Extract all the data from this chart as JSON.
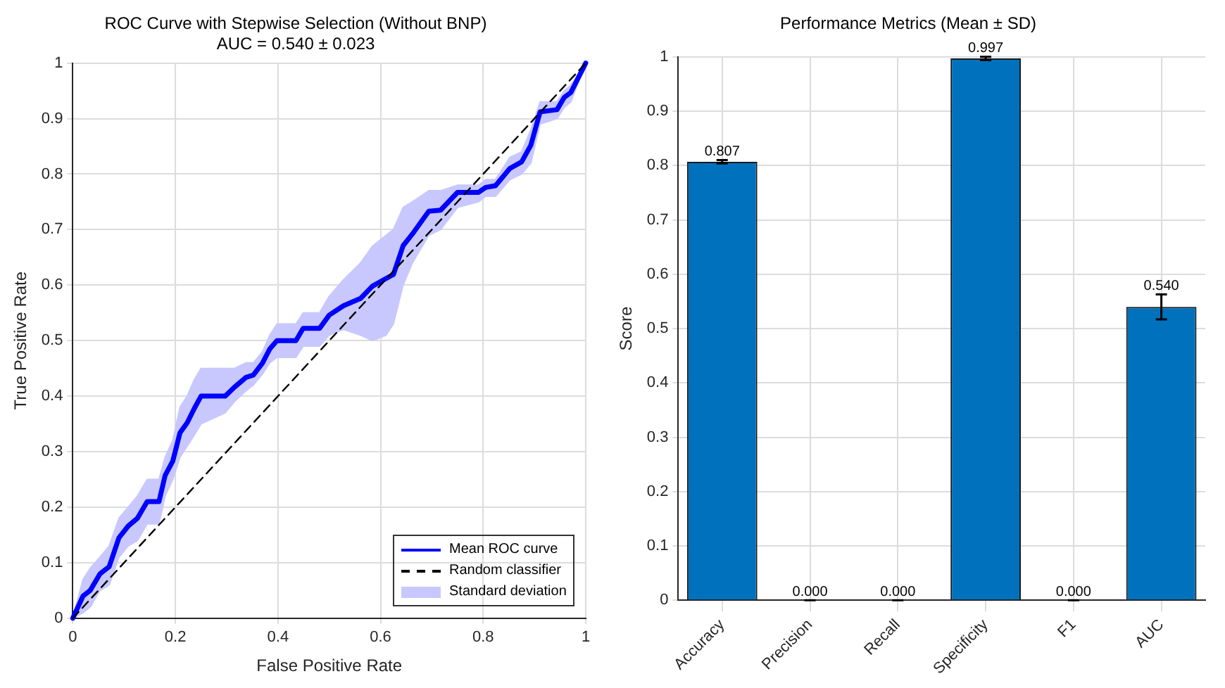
{
  "chart_data": [
    {
      "type": "line",
      "title": "ROC Curve with Stepwise Selection (Without BNP)",
      "subtitle": "AUC = 0.540 ± 0.023",
      "xlabel": "False Positive Rate",
      "ylabel": "True Positive Rate",
      "xlim": [
        0,
        1
      ],
      "xticks": [
        0,
        0.2,
        0.4,
        0.6,
        0.8,
        1
      ],
      "ylim": [
        0,
        1
      ],
      "yticks": [
        0,
        0.1,
        0.2,
        0.3,
        0.4,
        0.5,
        0.6,
        0.7,
        0.8,
        0.9,
        1
      ],
      "grid": true,
      "legend": "bottom right",
      "annotations": [
        "Standard deviation"
      ],
      "series": [
        {
          "name": "Mean ROC curve",
          "type": "line",
          "color": "#0000ff",
          "x": [
            0,
            0.02,
            0.034,
            0.053,
            0.071,
            0.09,
            0.108,
            0.126,
            0.145,
            0.168,
            0.18,
            0.195,
            0.209,
            0.223,
            0.237,
            0.25,
            0.297,
            0.315,
            0.338,
            0.352,
            0.37,
            0.384,
            0.398,
            0.435,
            0.449,
            0.481,
            0.5,
            0.528,
            0.561,
            0.584,
            0.611,
            0.625,
            0.644,
            0.662,
            0.694,
            0.717,
            0.75,
            0.791,
            0.805,
            0.824,
            0.852,
            0.875,
            0.893,
            0.911,
            0.944,
            0.958,
            0.971,
            1
          ],
          "values": [
            0,
            0.04,
            0.05,
            0.08,
            0.093,
            0.145,
            0.166,
            0.18,
            0.21,
            0.21,
            0.257,
            0.283,
            0.334,
            0.352,
            0.378,
            0.4,
            0.4,
            0.416,
            0.434,
            0.438,
            0.46,
            0.485,
            0.5,
            0.5,
            0.522,
            0.522,
            0.546,
            0.563,
            0.576,
            0.598,
            0.612,
            0.619,
            0.671,
            0.692,
            0.733,
            0.735,
            0.767,
            0.767,
            0.776,
            0.779,
            0.81,
            0.822,
            0.852,
            0.912,
            0.916,
            0.938,
            0.947,
            1
          ],
          "upper": [
            0,
            0.07,
            0.09,
            0.11,
            0.13,
            0.18,
            0.2,
            0.22,
            0.25,
            0.25,
            0.29,
            0.32,
            0.38,
            0.4,
            0.43,
            0.45,
            0.45,
            0.45,
            0.46,
            0.46,
            0.48,
            0.51,
            0.53,
            0.53,
            0.55,
            0.55,
            0.58,
            0.61,
            0.64,
            0.67,
            0.69,
            0.7,
            0.74,
            0.75,
            0.77,
            0.77,
            0.78,
            0.78,
            0.79,
            0.79,
            0.83,
            0.84,
            0.88,
            0.93,
            0.93,
            0.95,
            0.96,
            1
          ],
          "lower": [
            0,
            0.01,
            0.02,
            0.05,
            0.06,
            0.11,
            0.13,
            0.14,
            0.17,
            0.17,
            0.22,
            0.25,
            0.29,
            0.31,
            0.33,
            0.35,
            0.37,
            0.39,
            0.41,
            0.42,
            0.44,
            0.46,
            0.47,
            0.47,
            0.49,
            0.49,
            0.51,
            0.52,
            0.51,
            0.5,
            0.51,
            0.53,
            0.6,
            0.64,
            0.69,
            0.7,
            0.74,
            0.75,
            0.76,
            0.76,
            0.79,
            0.8,
            0.82,
            0.89,
            0.9,
            0.92,
            0.93,
            1
          ]
        },
        {
          "name": "Random classifier",
          "type": "line",
          "color": "#000000",
          "line_style": "dashed",
          "x": [
            0,
            1
          ],
          "values": [
            0,
            1
          ]
        }
      ]
    },
    {
      "type": "bar",
      "title": "Performance Metrics (Mean ± SD)",
      "ylabel": "Score",
      "categories": [
        "Accuracy",
        "Precision",
        "Recall",
        "Specificity",
        "F1",
        "AUC"
      ],
      "values": [
        0.807,
        0,
        0,
        0.997,
        0,
        0.54
      ],
      "errors": [
        0.003,
        0,
        0,
        0.003,
        0,
        0.023
      ],
      "color": "#0072bd",
      "value_labels": [
        "0.807",
        "0.000",
        "0.000",
        "0.997",
        "0.000",
        "0.540"
      ],
      "ylim": [
        0,
        1
      ],
      "yticks": [
        0,
        0.1,
        0.2,
        0.3,
        0.4,
        0.5,
        0.6,
        0.7,
        0.8,
        0.9,
        1
      ],
      "grid": true
    }
  ]
}
